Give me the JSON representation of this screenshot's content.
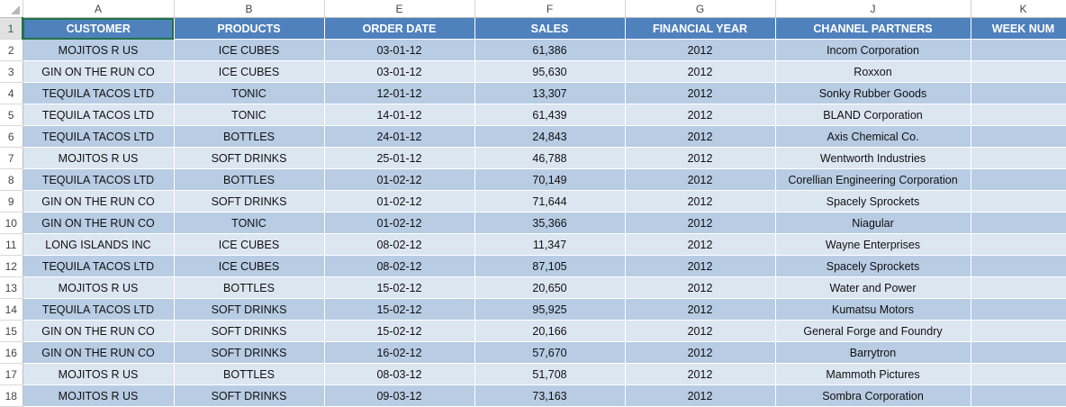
{
  "sheet": {
    "active_cell_row": "1",
    "column_letters": [
      "A",
      "B",
      "E",
      "F",
      "G",
      "J",
      "K"
    ],
    "headers": [
      "CUSTOMER",
      "PRODUCTS",
      "ORDER DATE",
      "SALES",
      "FINANCIAL YEAR",
      "CHANNEL PARTNERS",
      "WEEK NUM"
    ],
    "rows": [
      {
        "num": "2",
        "cells": [
          "MOJITOS R US",
          "ICE CUBES",
          "03-01-12",
          "61,386",
          "2012",
          "Incom Corporation",
          ""
        ]
      },
      {
        "num": "3",
        "cells": [
          "GIN ON THE RUN CO",
          "ICE CUBES",
          "03-01-12",
          "95,630",
          "2012",
          "Roxxon",
          ""
        ]
      },
      {
        "num": "4",
        "cells": [
          "TEQUILA TACOS LTD",
          "TONIC",
          "12-01-12",
          "13,307",
          "2012",
          "Sonky Rubber Goods",
          ""
        ]
      },
      {
        "num": "5",
        "cells": [
          "TEQUILA TACOS LTD",
          "TONIC",
          "14-01-12",
          "61,439",
          "2012",
          "BLAND Corporation",
          ""
        ]
      },
      {
        "num": "6",
        "cells": [
          "TEQUILA TACOS LTD",
          "BOTTLES",
          "24-01-12",
          "24,843",
          "2012",
          "Axis Chemical Co.",
          ""
        ]
      },
      {
        "num": "7",
        "cells": [
          "MOJITOS R US",
          "SOFT DRINKS",
          "25-01-12",
          "46,788",
          "2012",
          "Wentworth Industries",
          ""
        ]
      },
      {
        "num": "8",
        "cells": [
          "TEQUILA TACOS LTD",
          "BOTTLES",
          "01-02-12",
          "70,149",
          "2012",
          "Corellian Engineering Corporation",
          ""
        ]
      },
      {
        "num": "9",
        "cells": [
          "GIN ON THE RUN CO",
          "SOFT DRINKS",
          "01-02-12",
          "71,644",
          "2012",
          "Spacely Sprockets",
          ""
        ]
      },
      {
        "num": "10",
        "cells": [
          "GIN ON THE RUN CO",
          "TONIC",
          "01-02-12",
          "35,366",
          "2012",
          "Niagular",
          ""
        ]
      },
      {
        "num": "11",
        "cells": [
          "LONG ISLANDS INC",
          "ICE CUBES",
          "08-02-12",
          "11,347",
          "2012",
          "Wayne Enterprises",
          ""
        ]
      },
      {
        "num": "12",
        "cells": [
          "TEQUILA TACOS LTD",
          "ICE CUBES",
          "08-02-12",
          "87,105",
          "2012",
          "Spacely Sprockets",
          ""
        ]
      },
      {
        "num": "13",
        "cells": [
          "MOJITOS R US",
          "BOTTLES",
          "15-02-12",
          "20,650",
          "2012",
          "Water and Power",
          ""
        ]
      },
      {
        "num": "14",
        "cells": [
          "TEQUILA TACOS LTD",
          "SOFT DRINKS",
          "15-02-12",
          "95,925",
          "2012",
          "Kumatsu Motors",
          ""
        ]
      },
      {
        "num": "15",
        "cells": [
          "GIN ON THE RUN CO",
          "SOFT DRINKS",
          "15-02-12",
          "20,166",
          "2012",
          "General Forge and Foundry",
          ""
        ]
      },
      {
        "num": "16",
        "cells": [
          "GIN ON THE RUN CO",
          "SOFT DRINKS",
          "16-02-12",
          "57,670",
          "2012",
          "Barrytron",
          ""
        ]
      },
      {
        "num": "17",
        "cells": [
          "MOJITOS R US",
          "BOTTLES",
          "08-03-12",
          "51,708",
          "2012",
          "Mammoth Pictures",
          ""
        ]
      },
      {
        "num": "18",
        "cells": [
          "MOJITOS R US",
          "SOFT DRINKS",
          "09-03-12",
          "73,163",
          "2012",
          "Sombra Corporation",
          ""
        ]
      }
    ]
  },
  "colors": {
    "header_fill": "#4f81bd",
    "band_dark": "#b8cce4",
    "band_light": "#dce6f1",
    "selection_green": "#217346"
  }
}
